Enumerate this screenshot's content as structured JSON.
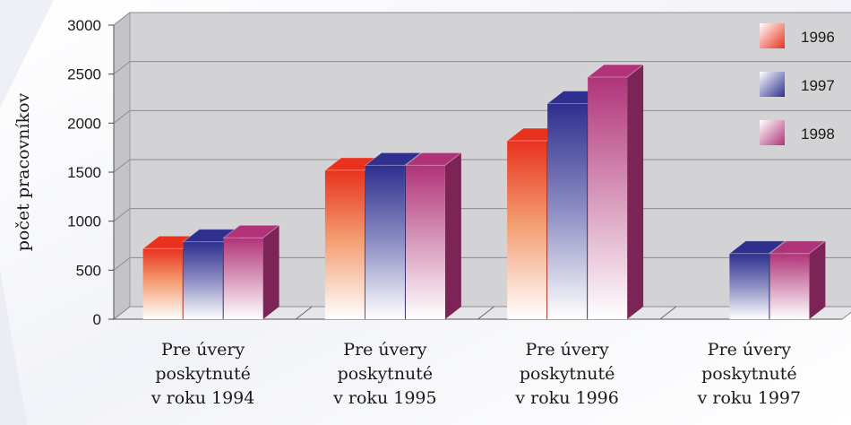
{
  "chart_data": {
    "type": "bar",
    "title": "",
    "ylabel": "počet pracovníkov",
    "ylim": [
      0,
      3000
    ],
    "yticks": [
      "0",
      "500",
      "1000",
      "1500",
      "2000",
      "2500",
      "3000"
    ],
    "categories": [
      [
        "Pre úvery",
        "poskytnuté",
        "v roku 1994"
      ],
      [
        "Pre úvery",
        "poskytnuté",
        "v roku 1995"
      ],
      [
        "Pre úvery",
        "poskytnuté",
        "v roku 1996"
      ],
      [
        "Pre úvery",
        "poskytnuté",
        "v roku 1997"
      ]
    ],
    "series": [
      {
        "name": "1996",
        "color": "#e8321e",
        "values": [
          720,
          1520,
          1820,
          null
        ]
      },
      {
        "name": "1997",
        "color": "#2e2f8e",
        "values": [
          790,
          1570,
          2200,
          670
        ]
      },
      {
        "name": "1998",
        "color": "#b0337a",
        "values": [
          830,
          1570,
          2470,
          670
        ]
      }
    ],
    "legend": "top-right",
    "grid": true
  }
}
